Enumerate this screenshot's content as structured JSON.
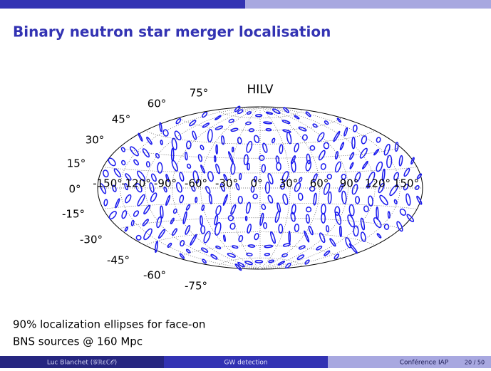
{
  "header": {
    "title": "Binary neutron star merger localisation"
  },
  "figure": {
    "title": "HILV",
    "latitude_labels": [
      "75°",
      "60°",
      "45°",
      "30°",
      "15°",
      "0°",
      "-15°",
      "-30°",
      "-45°",
      "-60°",
      "-75°"
    ],
    "longitude_labels": [
      "-150°",
      "-120°",
      "-90°",
      "-60°",
      "-30°",
      "0°",
      "30°",
      "60°",
      "90°",
      "120°",
      "150°"
    ]
  },
  "caption": [
    "90% localization ellipses for face-on",
    "BNS sources @ 160 Mpc"
  ],
  "footer": {
    "author": "Luc Blanchet (𝒢ℝεℂ𝒪)",
    "topic": "GW detection",
    "event": "Conférence IAP",
    "page": "20 / 50"
  }
}
